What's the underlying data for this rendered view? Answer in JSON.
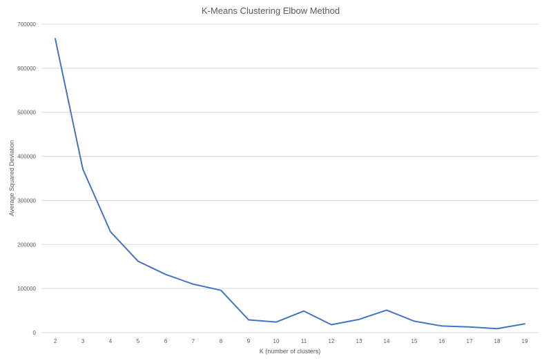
{
  "chart_data": {
    "type": "line",
    "title": "K-Means Clustering Elbow Method",
    "xlabel": "K (number of clusters)",
    "ylabel": "Average Squared Deviation",
    "x": [
      2,
      3,
      4,
      5,
      6,
      7,
      8,
      9,
      10,
      11,
      12,
      13,
      14,
      15,
      16,
      17,
      18,
      19
    ],
    "series": [
      {
        "values": [
          667000,
          371000,
          229000,
          162000,
          132000,
          110000,
          96000,
          29000,
          24000,
          49000,
          18000,
          30000,
          51000,
          26000,
          15000,
          13000,
          9000,
          20000
        ],
        "color": "#4472c4"
      }
    ],
    "ylim": [
      0,
      700000
    ],
    "yticks": [
      0,
      100000,
      200000,
      300000,
      400000,
      500000,
      600000,
      700000
    ],
    "grid": "horizontal",
    "legend": "none"
  }
}
